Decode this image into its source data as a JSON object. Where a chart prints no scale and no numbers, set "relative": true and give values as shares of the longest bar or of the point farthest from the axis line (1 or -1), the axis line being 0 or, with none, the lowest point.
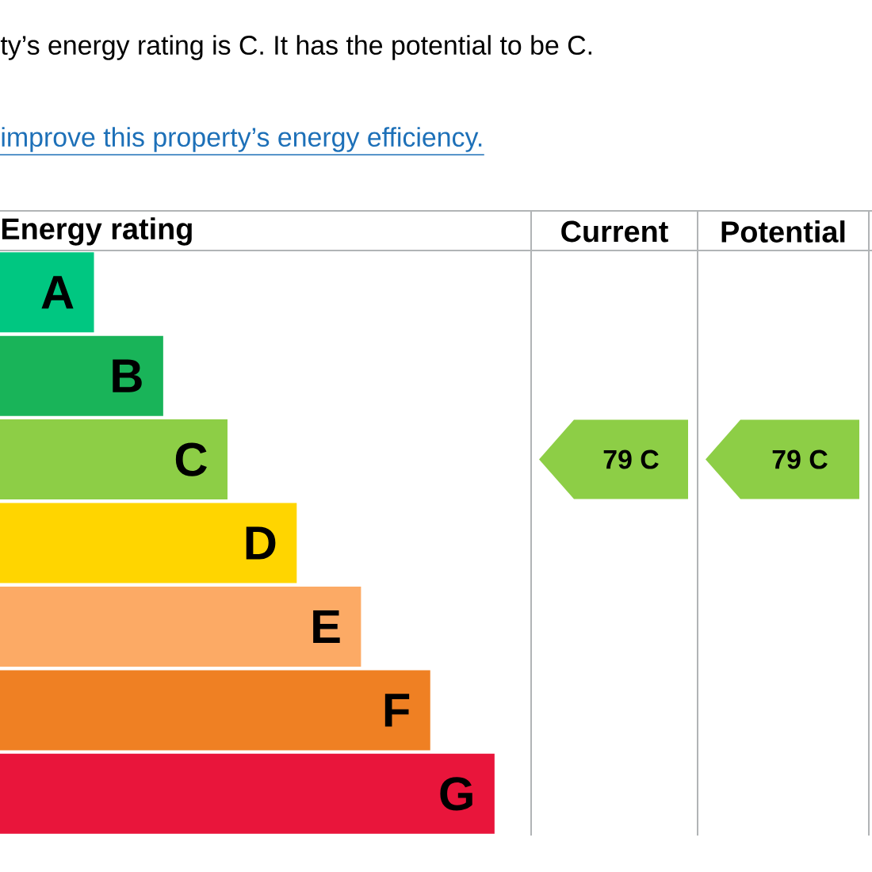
{
  "chart_data": {
    "type": "bar",
    "orientation": "horizontal",
    "relative": true,
    "title": "ty’s energy rating is C. It has the potential to be C.",
    "subtitle": "improve this property’s energy efficiency.",
    "categories": [
      "A",
      "B",
      "C",
      "D",
      "E",
      "F",
      "G"
    ],
    "values": [
      0.19,
      0.33,
      0.46,
      0.6,
      0.73,
      0.87,
      1
    ],
    "colors": [
      "#00c781",
      "#19b459",
      "#8dce46",
      "#ffd500",
      "#fcaa65",
      "#ef8023",
      "#e9153b"
    ],
    "annotations": [
      "Energy rating",
      "Current",
      "Potential",
      "79 C",
      "79 C"
    ]
  }
}
